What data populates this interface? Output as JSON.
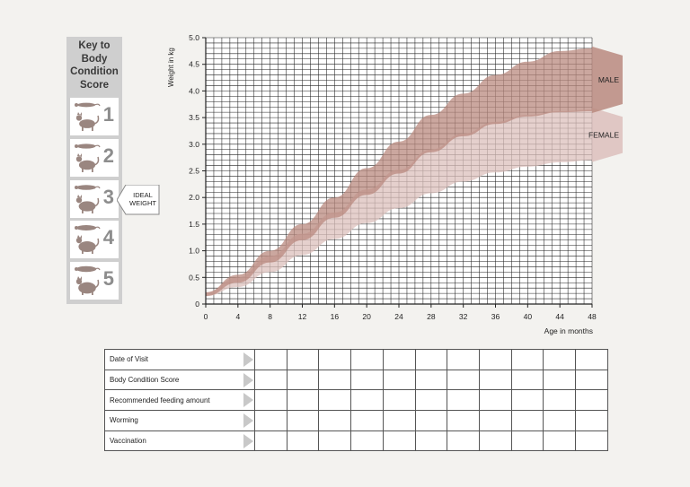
{
  "key": {
    "title": "Key to\nBody\nCondition\nScore",
    "scores": [
      "1",
      "2",
      "3",
      "4",
      "5"
    ],
    "ideal_label": "IDEAL\nWEIGHT",
    "ideal_score": "3"
  },
  "chart_data": {
    "type": "area",
    "title": "",
    "xlabel": "Age in months",
    "ylabel": "Weight in kg",
    "xlim": [
      0,
      48
    ],
    "ylim": [
      0,
      5
    ],
    "xticks": [
      0,
      4,
      8,
      12,
      16,
      20,
      24,
      28,
      32,
      36,
      40,
      44,
      48
    ],
    "yticks": [
      0,
      0.5,
      1.0,
      1.5,
      2.0,
      2.5,
      3.0,
      3.5,
      4.0,
      4.5,
      5.0
    ],
    "ytick_labels": [
      "0",
      "0.5",
      "1.0",
      "1.5",
      "2.0",
      "2.5",
      "3.0",
      "3.5",
      "4.0",
      "4.5",
      "5.0"
    ],
    "grid": true,
    "x": [
      0,
      4,
      8,
      12,
      16,
      20,
      24,
      28,
      32,
      36,
      40,
      44,
      48
    ],
    "series": [
      {
        "name": "MALE",
        "upper": [
          0.22,
          0.55,
          1.0,
          1.5,
          2.0,
          2.55,
          3.05,
          3.55,
          3.95,
          4.3,
          4.55,
          4.75,
          4.8
        ],
        "lower": [
          0.15,
          0.4,
          0.78,
          1.2,
          1.62,
          2.05,
          2.45,
          2.85,
          3.15,
          3.38,
          3.52,
          3.6,
          3.62
        ],
        "color": "#b98a7f"
      },
      {
        "name": "FEMALE",
        "upper": [
          0.22,
          0.5,
          0.9,
          1.32,
          1.72,
          2.15,
          2.52,
          2.9,
          3.2,
          3.42,
          3.55,
          3.62,
          3.65
        ],
        "lower": [
          0.15,
          0.32,
          0.6,
          0.92,
          1.22,
          1.52,
          1.8,
          2.08,
          2.3,
          2.47,
          2.58,
          2.66,
          2.7
        ],
        "color": "#dcc0bc"
      }
    ]
  },
  "record_table": {
    "rows": [
      "Date of Visit",
      "Body Condition Score",
      "Recommended feeding amount",
      "Worming",
      "Vaccination"
    ],
    "empty_columns": 11
  }
}
